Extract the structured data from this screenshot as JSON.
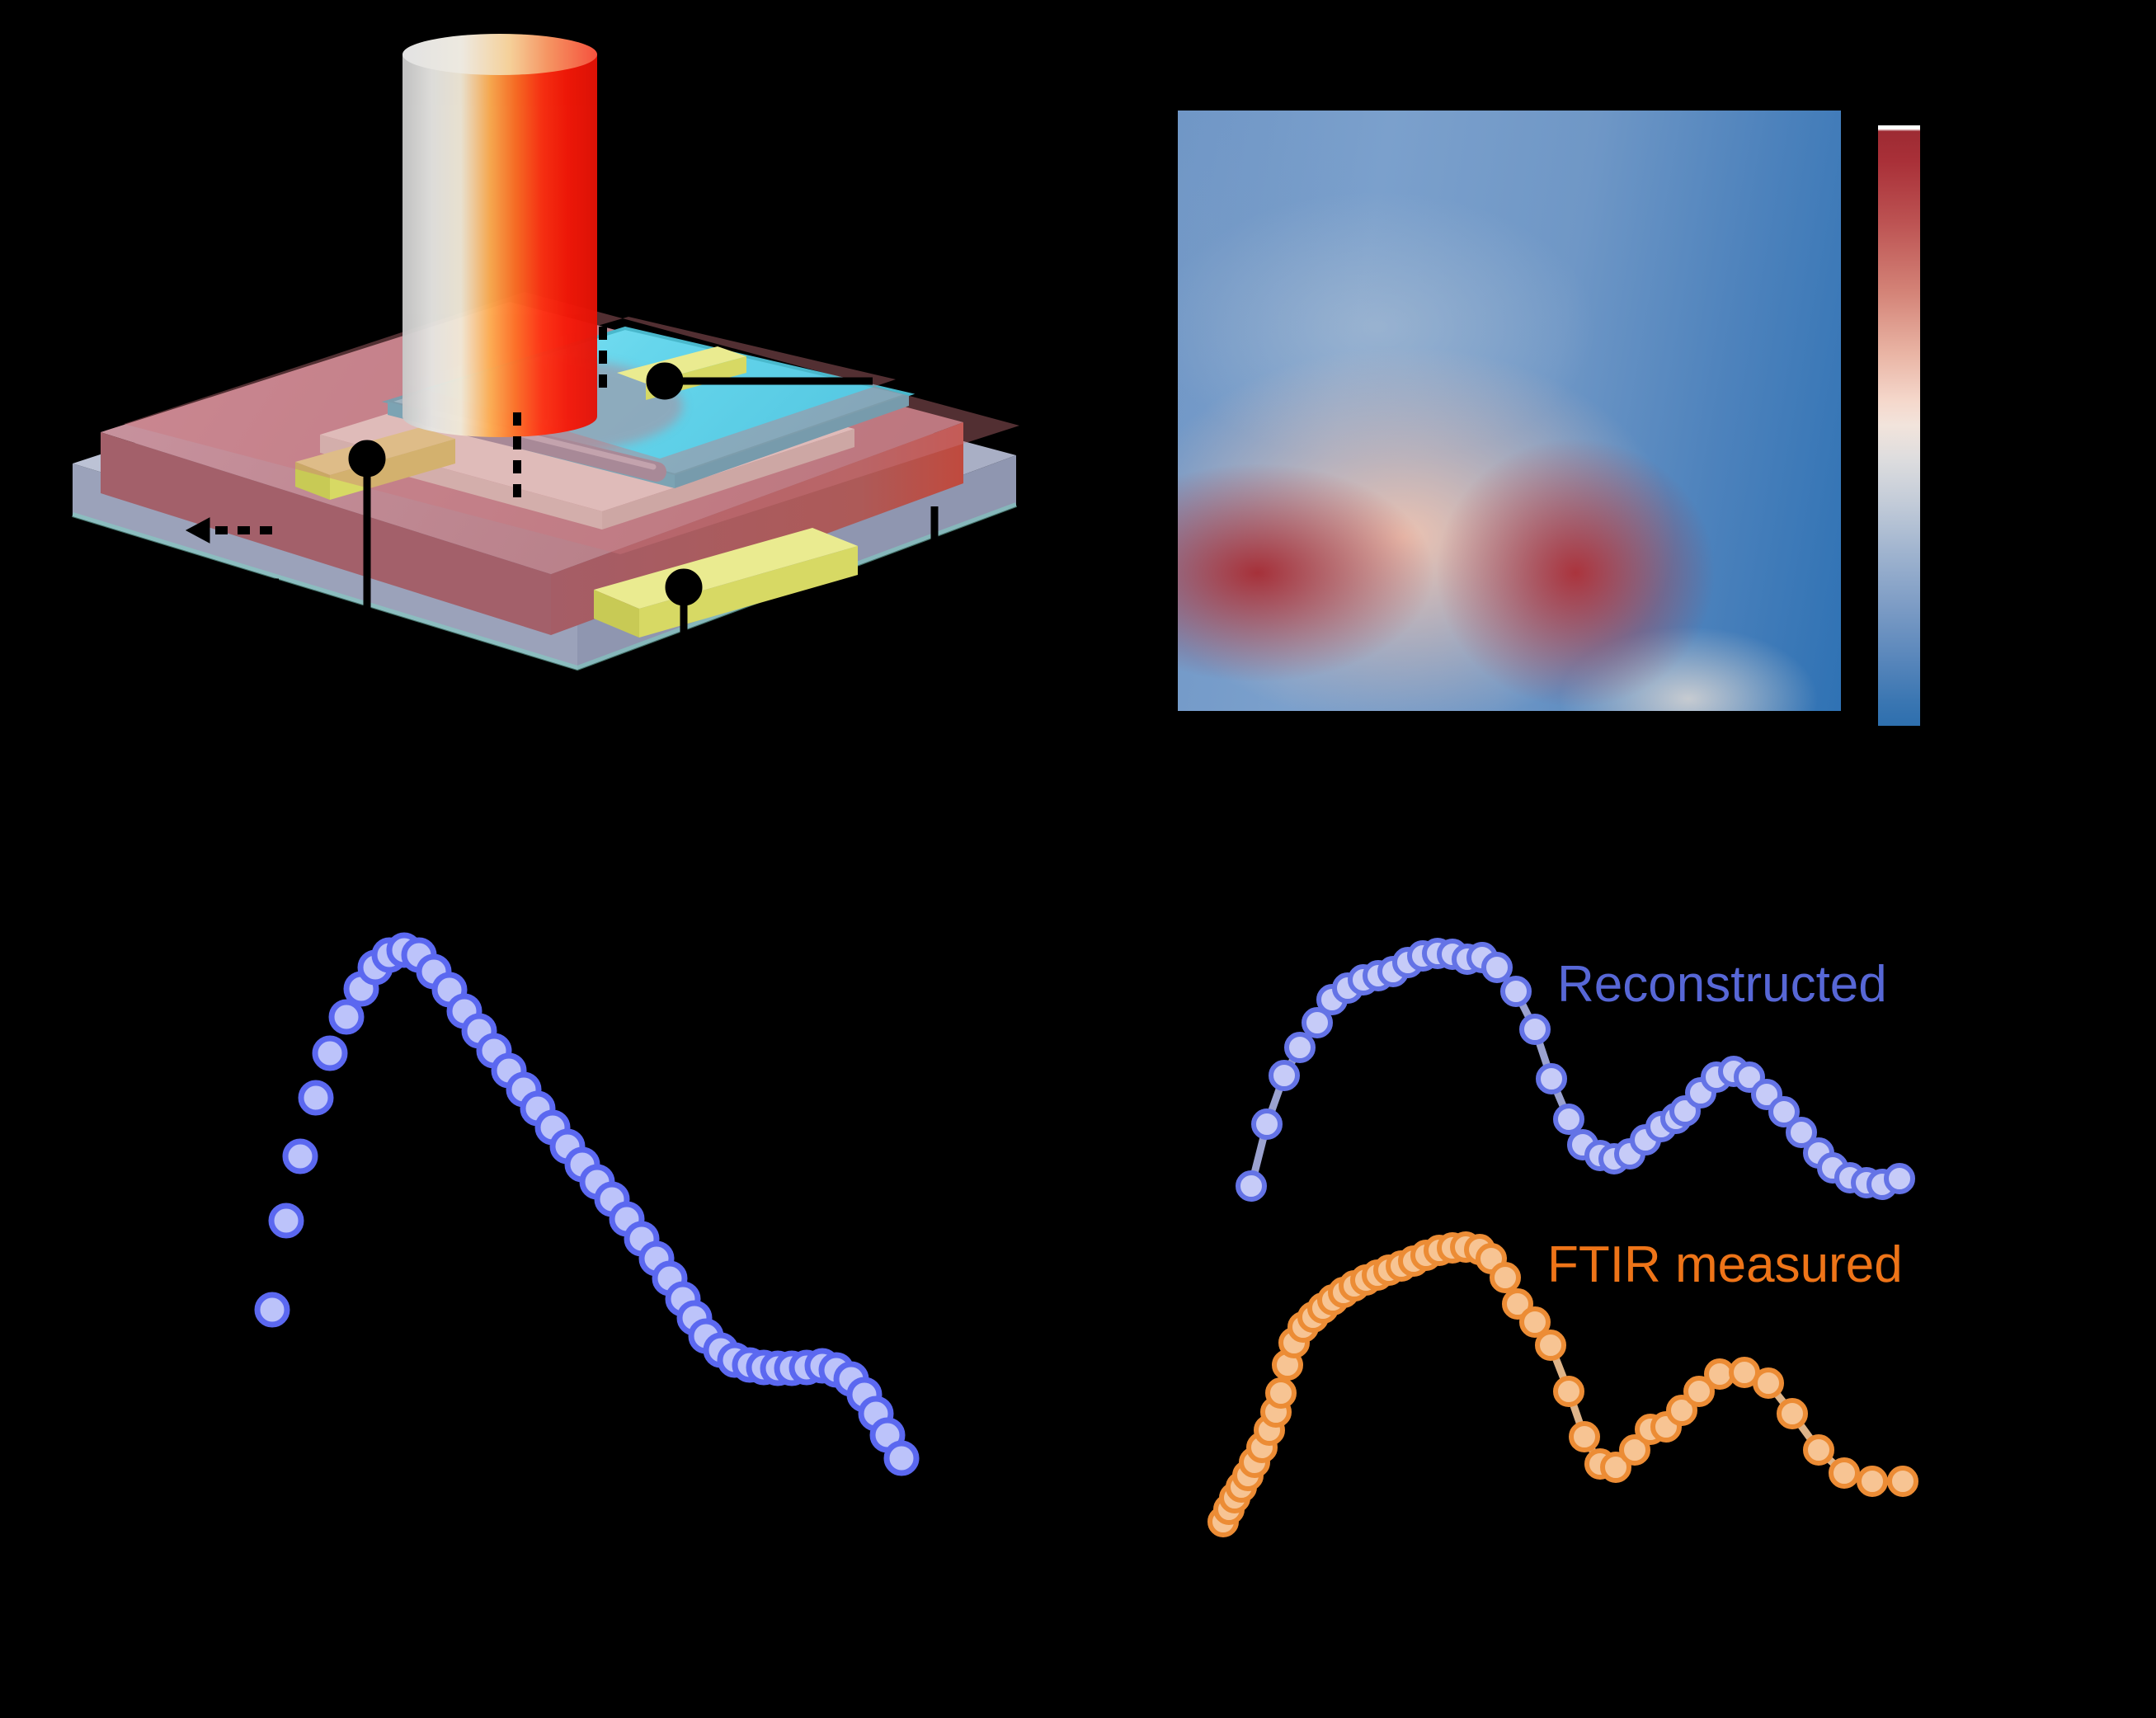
{
  "figure": {
    "background_color": "#000000",
    "description_visible_text_only": true
  },
  "colors": {
    "reconstructed_label": "#5767d6",
    "ftir_label": "#ee7418",
    "scatter_marker_fill": "#bcc3fa",
    "scatter_marker_stroke": "#5b68f0",
    "orange_marker_fill": "#f7c493",
    "orange_marker_stroke": "#ec8c35",
    "heatmap_hot": "#a93036",
    "heatmap_cold": "#2f72b4"
  },
  "chart_data": [
    {
      "id": "photoresponse-map",
      "type": "heatmap",
      "title": "",
      "xlabel": "",
      "ylabel": "",
      "tick_labels_visible": false,
      "colormap": "coolwarm (dark red = high, blue = low)",
      "colorbar": {
        "position": "right",
        "top_color": "#9d2b33",
        "bottom_color": "#2e6fae",
        "top_cap_color": "#ffffff",
        "labels_visible": false
      },
      "qualitative_content": "Mostly blue field; large warm (pink-cream) irregular region over lower-left and centre with two dark-red cores at ~ (12%,77%) and ~ (60%,77%) of the map; right-hand quarter stays blue; faint pale patch at bottom-centre-right."
    },
    {
      "id": "spectrum-single",
      "type": "scatter",
      "title": "",
      "xlabel": "",
      "ylabel": "",
      "tick_labels_visible": false,
      "coordinate_space": "page-pixels (y grows downward; no axis values are printed in the figure)",
      "series": [
        {
          "label": "",
          "connect": false,
          "marker_radius": 18,
          "marker_stroke_width": 7,
          "marker_fill": "#bcc3fa",
          "marker_stroke": "#5b68f0",
          "points": [
            [
              330,
              1588
            ],
            [
              347,
              1480
            ],
            [
              364,
              1402
            ],
            [
              383,
              1331
            ],
            [
              400,
              1277
            ],
            [
              420,
              1233
            ],
            [
              438,
              1199
            ],
            [
              455,
              1173
            ],
            [
              472,
              1158
            ],
            [
              490,
              1152
            ],
            [
              508,
              1158
            ],
            [
              526,
              1178
            ],
            [
              545,
              1200
            ],
            [
              563,
              1226
            ],
            [
              581,
              1250
            ],
            [
              599,
              1274
            ],
            [
              617,
              1298
            ],
            [
              635,
              1321
            ],
            [
              652,
              1344
            ],
            [
              670,
              1367
            ],
            [
              688,
              1390
            ],
            [
              706,
              1412
            ],
            [
              724,
              1433
            ],
            [
              742,
              1454
            ],
            [
              760,
              1478
            ],
            [
              778,
              1502
            ],
            [
              796,
              1526
            ],
            [
              812,
              1550
            ],
            [
              828,
              1575
            ],
            [
              842,
              1598
            ],
            [
              856,
              1620
            ],
            [
              874,
              1637
            ],
            [
              891,
              1649
            ],
            [
              909,
              1655
            ],
            [
              926,
              1658
            ],
            [
              943,
              1659
            ],
            [
              960,
              1659
            ],
            [
              978,
              1658
            ],
            [
              997,
              1656
            ],
            [
              1014,
              1661
            ],
            [
              1032,
              1672
            ],
            [
              1048,
              1691
            ],
            [
              1062,
              1714
            ],
            [
              1076,
              1740
            ],
            [
              1093,
              1768
            ]
          ]
        }
      ]
    },
    {
      "id": "spectra-comparison",
      "type": "line",
      "title": "",
      "xlabel": "",
      "ylabel": "",
      "tick_labels_visible": false,
      "legend_position": "inline text labels right of each curve",
      "coordinate_space": "page-pixels (y grows downward; no axis values are printed in the figure)",
      "series": [
        {
          "label": "Reconstructed",
          "connect": true,
          "line_color": "rgba(182,190,244,0.85)",
          "line_width": 9,
          "marker_radius": 16,
          "marker_stroke_width": 6,
          "marker_fill": "#c6cbf8",
          "marker_stroke": "#6473e6",
          "points": [
            [
              1517,
              1438
            ],
            [
              1536,
              1363
            ],
            [
              1557,
              1304
            ],
            [
              1576,
              1270
            ],
            [
              1597,
              1240
            ],
            [
              1615,
              1212
            ],
            [
              1634,
              1198
            ],
            [
              1653,
              1188
            ],
            [
              1671,
              1183
            ],
            [
              1689,
              1178
            ],
            [
              1707,
              1167
            ],
            [
              1725,
              1159
            ],
            [
              1743,
              1156
            ],
            [
              1761,
              1157
            ],
            [
              1779,
              1163
            ],
            [
              1797,
              1161
            ],
            [
              1815,
              1173
            ],
            [
              1838,
              1202
            ],
            [
              1861,
              1248
            ],
            [
              1881,
              1308
            ],
            [
              1902,
              1357
            ],
            [
              1919,
              1388
            ],
            [
              1940,
              1401
            ],
            [
              1957,
              1405
            ],
            [
              1976,
              1399
            ],
            [
              1995,
              1382
            ],
            [
              2014,
              1366
            ],
            [
              2032,
              1356
            ],
            [
              2043,
              1347
            ],
            [
              2062,
              1325
            ],
            [
              2081,
              1306
            ],
            [
              2102,
              1299
            ],
            [
              2121,
              1306
            ],
            [
              2142,
              1327
            ],
            [
              2163,
              1348
            ],
            [
              2184,
              1373
            ],
            [
              2205,
              1398
            ],
            [
              2222,
              1416
            ],
            [
              2243,
              1428
            ],
            [
              2263,
              1434
            ],
            [
              2282,
              1436
            ],
            [
              2303,
              1429
            ]
          ]
        },
        {
          "label": "FTIR measured",
          "connect": true,
          "line_color": "rgba(246,200,152,0.9)",
          "line_width": 9,
          "marker_radius": 16,
          "marker_stroke_width": 6,
          "marker_fill": "#f7c493",
          "marker_stroke": "#ec8c35",
          "points": [
            [
              1483,
              1845
            ],
            [
              1490,
              1830
            ],
            [
              1497,
              1816
            ],
            [
              1505,
              1803
            ],
            [
              1513,
              1789
            ],
            [
              1521,
              1773
            ],
            [
              1530,
              1755
            ],
            [
              1539,
              1734
            ],
            [
              1547,
              1712
            ],
            [
              1553,
              1689
            ],
            [
              1561,
              1655
            ],
            [
              1569,
              1628
            ],
            [
              1580,
              1609
            ],
            [
              1592,
              1597
            ],
            [
              1604,
              1586
            ],
            [
              1616,
              1576
            ],
            [
              1629,
              1567
            ],
            [
              1642,
              1559
            ],
            [
              1656,
              1552
            ],
            [
              1670,
              1546
            ],
            [
              1684,
              1540
            ],
            [
              1699,
              1535
            ],
            [
              1714,
              1529
            ],
            [
              1729,
              1522
            ],
            [
              1745,
              1516
            ],
            [
              1761,
              1513
            ],
            [
              1777,
              1512
            ],
            [
              1794,
              1515
            ],
            [
              1808,
              1526
            ],
            [
              1825,
              1549
            ],
            [
              1840,
              1581
            ],
            [
              1861,
              1603
            ],
            [
              1880,
              1631
            ],
            [
              1902,
              1687
            ],
            [
              1921,
              1742
            ],
            [
              1940,
              1775
            ],
            [
              1959,
              1779
            ],
            [
              1982,
              1758
            ],
            [
              2001,
              1733
            ],
            [
              2020,
              1730
            ],
            [
              2039,
              1710
            ],
            [
              2060,
              1687
            ],
            [
              2085,
              1666
            ],
            [
              2115,
              1664
            ],
            [
              2144,
              1677
            ],
            [
              2173,
              1714
            ],
            [
              2205,
              1758
            ],
            [
              2236,
              1786
            ],
            [
              2270,
              1796
            ],
            [
              2307,
              1796
            ]
          ]
        }
      ]
    }
  ]
}
